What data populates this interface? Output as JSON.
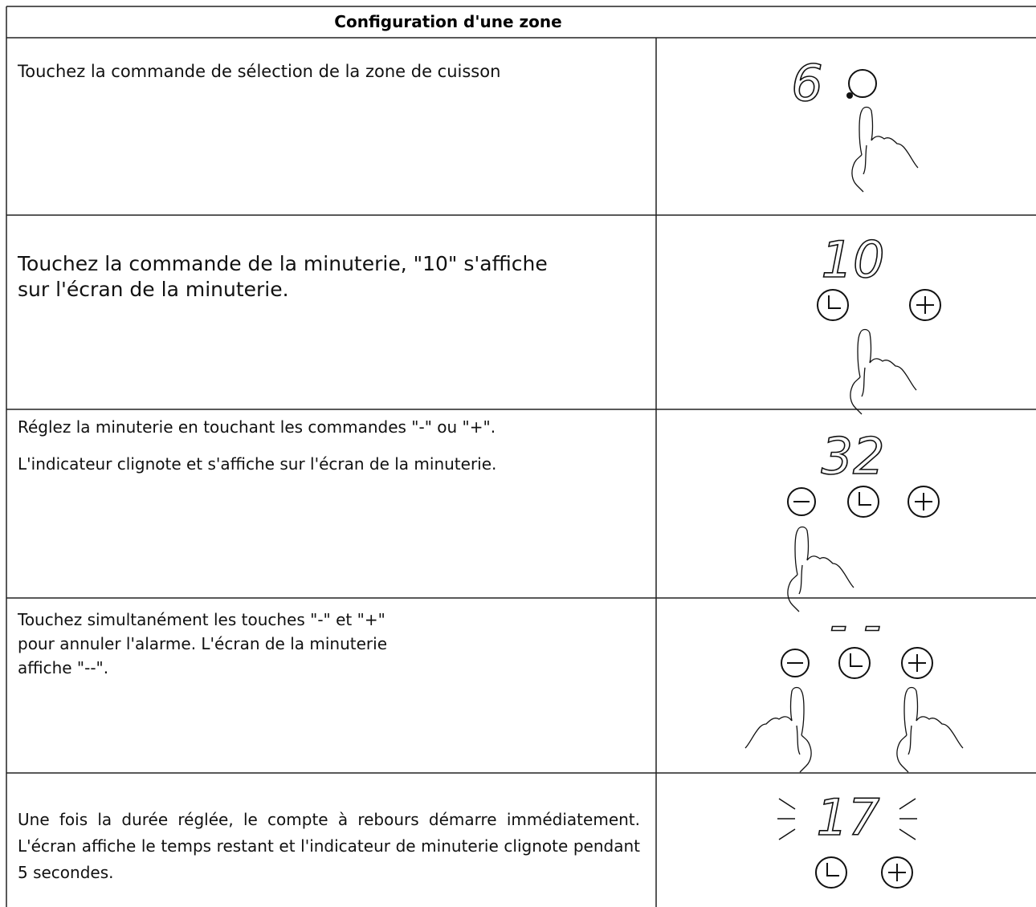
{
  "header": {
    "title": "Configuration d'une zone"
  },
  "rows": [
    {
      "lines": [
        "Touchez la commande de sélection de la zone de cuisson"
      ],
      "display": "6"
    },
    {
      "lines": [
        "Touchez la commande de la minuterie, \"10\" s'affiche",
        "sur l'écran de la minuterie."
      ],
      "display": "10"
    },
    {
      "lines": [
        "Réglez la minuterie en touchant les commandes \"-\" ou \"+\".",
        "L'indicateur clignote et s'affiche sur l'écran de la minuterie."
      ],
      "display": "32"
    },
    {
      "lines": [
        "Touchez simultanément les touches \"-\" et \"+\"",
        "pour annuler l'alarme. L'écran de la minuterie",
        "affiche \"--\"."
      ],
      "display": "- -"
    },
    {
      "lines": [
        "Une fois la durée réglée, le compte à rebours démarre immédiatement. L'écran affiche le temps restant et l'indicateur de minuterie clignote pendant 5 secondes."
      ],
      "display": "17"
    }
  ]
}
